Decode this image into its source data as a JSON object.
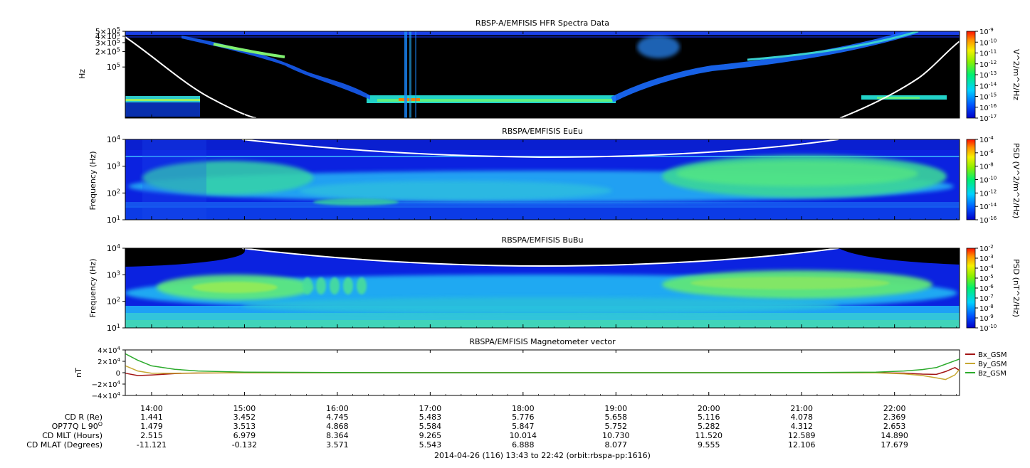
{
  "chart_data": [
    {
      "type": "heatmap",
      "title": "RBSP-A/EMFISIS  HFR Spectra Data",
      "ylabel": "Hz",
      "y_scale": "log",
      "ylim": [
        10000,
        500000
      ],
      "yticks": [
        {
          "v": 100000,
          "label": "10",
          "sup": "5"
        },
        {
          "v": 200000,
          "label": "2×10",
          "sup": "5"
        },
        {
          "v": 300000,
          "label": "3×10",
          "sup": "5"
        },
        {
          "v": 400000,
          "label": "4×10",
          "sup": "5"
        },
        {
          "v": 500000,
          "label": "5×10",
          "sup": "5"
        }
      ],
      "colorbar": {
        "label": "V^2/m^2/Hz",
        "ticks": [
          {
            "b": "10",
            "e": "-9"
          },
          {
            "b": "10",
            "e": "-10"
          },
          {
            "b": "10",
            "e": "-11"
          },
          {
            "b": "10",
            "e": "-12"
          },
          {
            "b": "10",
            "e": "-13"
          },
          {
            "b": "10",
            "e": "-14"
          },
          {
            "b": "10",
            "e": "-15"
          },
          {
            "b": "10",
            "e": "-16"
          },
          {
            "b": "10",
            "e": "-17"
          }
        ]
      },
      "background": "#000000"
    },
    {
      "type": "heatmap",
      "title": "RBSPA/EMFISIS  EuEu",
      "ylabel": "Frequency (Hz)",
      "y_scale": "log",
      "ylim": [
        10,
        10000
      ],
      "yticks": [
        {
          "v": 10,
          "label": "10",
          "sup": "1"
        },
        {
          "v": 100,
          "label": "10",
          "sup": "2"
        },
        {
          "v": 1000,
          "label": "10",
          "sup": "3"
        },
        {
          "v": 10000,
          "label": "10",
          "sup": "4"
        }
      ],
      "colorbar": {
        "label": "PSD (V^2/m^2/Hz)",
        "ticks": [
          {
            "b": "10",
            "e": "-4"
          },
          {
            "b": "10",
            "e": "-6"
          },
          {
            "b": "10",
            "e": "-8"
          },
          {
            "b": "10",
            "e": "-10"
          },
          {
            "b": "10",
            "e": "-12"
          },
          {
            "b": "10",
            "e": "-14"
          },
          {
            "b": "10",
            "e": "-16"
          }
        ]
      },
      "background": "#0b22e0"
    },
    {
      "type": "heatmap",
      "title": "RBSPA/EMFISIS  BuBu",
      "ylabel": "Frequency (Hz)",
      "y_scale": "log",
      "ylim": [
        10,
        10000
      ],
      "yticks": [
        {
          "v": 10,
          "label": "10",
          "sup": "1"
        },
        {
          "v": 100,
          "label": "10",
          "sup": "2"
        },
        {
          "v": 1000,
          "label": "10",
          "sup": "3"
        },
        {
          "v": 10000,
          "label": "10",
          "sup": "4"
        }
      ],
      "colorbar": {
        "label": "PSD (nT^2/Hz)",
        "ticks": [
          {
            "b": "10",
            "e": "-2"
          },
          {
            "b": "10",
            "e": "-3"
          },
          {
            "b": "10",
            "e": "-4"
          },
          {
            "b": "10",
            "e": "-5"
          },
          {
            "b": "10",
            "e": "-6"
          },
          {
            "b": "10",
            "e": "-7"
          },
          {
            "b": "10",
            "e": "-8"
          },
          {
            "b": "10",
            "e": "-9"
          },
          {
            "b": "10",
            "e": "-10"
          }
        ]
      },
      "background": "#0b22e0"
    },
    {
      "type": "line",
      "title": "RBSPA/EMFISIS  Magnetometer vector",
      "ylabel": "nT",
      "ylim": [
        -40000,
        40000
      ],
      "yticks": [
        {
          "v": 40000,
          "label": "4×10",
          "sup": "4"
        },
        {
          "v": 20000,
          "label": "2×10",
          "sup": "4"
        },
        {
          "v": 0,
          "label": "0",
          "sup": ""
        },
        {
          "v": -20000,
          "label": "−2×10",
          "sup": "4"
        },
        {
          "v": -40000,
          "label": "−4×10",
          "sup": "4"
        }
      ],
      "x_hours": [
        13.72,
        13.85,
        14.0,
        14.25,
        14.5,
        15.0,
        16.0,
        17.0,
        18.0,
        19.0,
        20.0,
        21.0,
        21.8,
        22.1,
        22.3,
        22.45,
        22.55,
        22.65,
        22.7
      ],
      "series": [
        {
          "name": "Bx_GSM",
          "color": "#a31515",
          "values": [
            -1000,
            -5000,
            -4000,
            -1500,
            -600,
            -100,
            0,
            0,
            0,
            0,
            0,
            0,
            -100,
            -800,
            -2500,
            -3000,
            2000,
            9000,
            4000
          ]
        },
        {
          "name": "By_GSM",
          "color": "#c7a832",
          "values": [
            12000,
            3000,
            -1000,
            -1000,
            -500,
            -100,
            0,
            0,
            0,
            0,
            0,
            0,
            -300,
            -2000,
            -5000,
            -9000,
            -12000,
            -4000,
            6000
          ]
        },
        {
          "name": "Bz_GSM",
          "color": "#2dab2d",
          "values": [
            33000,
            22000,
            12000,
            6000,
            3000,
            1000,
            200,
            0,
            0,
            0,
            0,
            200,
            1000,
            3000,
            5500,
            9000,
            15000,
            21000,
            24000
          ]
        }
      ]
    }
  ],
  "time_axis": {
    "start_hour": 13.7167,
    "end_hour": 22.7,
    "ticks": [
      {
        "h": 14,
        "label": "14:00"
      },
      {
        "h": 15,
        "label": "15:00"
      },
      {
        "h": 16,
        "label": "16:00"
      },
      {
        "h": 17,
        "label": "17:00"
      },
      {
        "h": 18,
        "label": "18:00"
      },
      {
        "h": 19,
        "label": "19:00"
      },
      {
        "h": 20,
        "label": "20:00"
      },
      {
        "h": 21,
        "label": "21:00"
      },
      {
        "h": 22,
        "label": "22:00"
      }
    ]
  },
  "ephemeris": {
    "rows": [
      {
        "label": "CD R (Re)",
        "values": [
          "1.441",
          "3.452",
          "4.745",
          "5.483",
          "5.776",
          "5.658",
          "5.116",
          "4.078",
          "2.369"
        ]
      },
      {
        "label": "OP77Q L 90",
        "label_sup": "O",
        "values": [
          "1.479",
          "3.513",
          "4.868",
          "5.584",
          "5.847",
          "5.752",
          "5.282",
          "4.312",
          "2.653"
        ]
      },
      {
        "label": "CD MLT (Hours)",
        "values": [
          "2.515",
          "6.979",
          "8.364",
          "9.265",
          "10.014",
          "10.730",
          "11.520",
          "12.589",
          "14.890"
        ]
      },
      {
        "label": "CD MLAT (Degrees)",
        "values": [
          "-11.121",
          "-0.132",
          "3.571",
          "5.543",
          "6.888",
          "8.077",
          "9.555",
          "12.106",
          "17.679"
        ]
      }
    ]
  },
  "footer": "2014-04-26 (116) 13:43 to 22:42 (orbit:rbspa-pp:1616)"
}
